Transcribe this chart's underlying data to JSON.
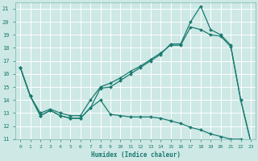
{
  "xlabel": "Humidex (Indice chaleur)",
  "bg_color": "#cde8e5",
  "line_color": "#1a7a6e",
  "grid_color": "#b0d4d0",
  "xlim": [
    -0.5,
    23.5
  ],
  "ylim": [
    11,
    21.5
  ],
  "xticks": [
    0,
    1,
    2,
    3,
    4,
    5,
    6,
    7,
    8,
    9,
    10,
    11,
    12,
    13,
    14,
    15,
    16,
    17,
    18,
    19,
    20,
    21,
    22,
    23
  ],
  "yticks": [
    11,
    12,
    13,
    14,
    15,
    16,
    17,
    18,
    19,
    20,
    21
  ],
  "line1_x": [
    0,
    1,
    2,
    3,
    4,
    5,
    6,
    7,
    8,
    9,
    10,
    11,
    12,
    13,
    14,
    15,
    16,
    17,
    18,
    19,
    20,
    21,
    22,
    23
  ],
  "line1_y": [
    16.5,
    14.3,
    12.8,
    13.2,
    12.8,
    12.6,
    12.6,
    13.4,
    14.9,
    15.0,
    15.5,
    16.0,
    16.5,
    17.0,
    17.5,
    18.3,
    18.3,
    20.0,
    21.2,
    19.4,
    19.0,
    18.2,
    14.0,
    10.8
  ],
  "line2_x": [
    0,
    1,
    2,
    3,
    4,
    5,
    6,
    7,
    8,
    9,
    10,
    11,
    12,
    13,
    14,
    15,
    16,
    17,
    18,
    19,
    20,
    21,
    22,
    23
  ],
  "line2_y": [
    16.5,
    14.3,
    13.0,
    13.3,
    13.0,
    12.8,
    12.8,
    14.0,
    15.0,
    15.3,
    15.7,
    16.2,
    16.6,
    17.1,
    17.6,
    18.2,
    18.2,
    19.6,
    19.4,
    19.0,
    18.9,
    18.1,
    14.0,
    10.8
  ],
  "line3_x": [
    0,
    1,
    2,
    3,
    4,
    5,
    6,
    7,
    8,
    9,
    10,
    11,
    12,
    13,
    14,
    15,
    16,
    17,
    18,
    19,
    20,
    21,
    22,
    23
  ],
  "line3_y": [
    16.5,
    14.3,
    12.8,
    13.2,
    12.8,
    12.6,
    12.6,
    13.4,
    14.0,
    12.9,
    12.8,
    12.7,
    12.7,
    12.7,
    12.6,
    12.4,
    12.2,
    11.9,
    11.7,
    11.4,
    11.2,
    11.0,
    11.0,
    10.8
  ]
}
